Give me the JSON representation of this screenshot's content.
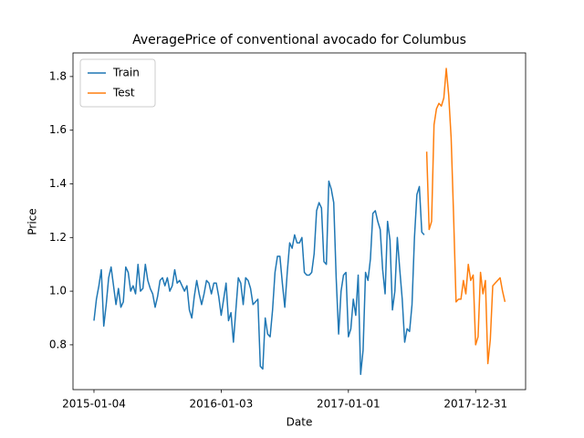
{
  "chart_data": {
    "type": "line",
    "title": "AveragePrice of conventional avocado for Columbus",
    "x_label": "Date",
    "y_label": "Price",
    "x": [
      "2015-01-04",
      "2015-01-11",
      "2015-01-18",
      "2015-01-25",
      "2015-02-01",
      "2015-02-08",
      "2015-02-15",
      "2015-02-22",
      "2015-03-01",
      "2015-03-08",
      "2015-03-15",
      "2015-03-22",
      "2015-03-29",
      "2015-04-05",
      "2015-04-12",
      "2015-04-19",
      "2015-04-26",
      "2015-05-03",
      "2015-05-10",
      "2015-05-17",
      "2015-05-24",
      "2015-05-31",
      "2015-06-07",
      "2015-06-14",
      "2015-06-21",
      "2015-06-28",
      "2015-07-05",
      "2015-07-12",
      "2015-07-19",
      "2015-07-26",
      "2015-08-02",
      "2015-08-09",
      "2015-08-16",
      "2015-08-23",
      "2015-08-30",
      "2015-09-06",
      "2015-09-13",
      "2015-09-20",
      "2015-09-27",
      "2015-10-04",
      "2015-10-11",
      "2015-10-18",
      "2015-10-25",
      "2015-11-01",
      "2015-11-08",
      "2015-11-15",
      "2015-11-22",
      "2015-11-29",
      "2015-12-06",
      "2015-12-13",
      "2015-12-20",
      "2015-12-27",
      "2016-01-03",
      "2016-01-10",
      "2016-01-17",
      "2016-01-24",
      "2016-01-31",
      "2016-02-07",
      "2016-02-14",
      "2016-02-21",
      "2016-02-28",
      "2016-03-06",
      "2016-03-13",
      "2016-03-20",
      "2016-03-27",
      "2016-04-03",
      "2016-04-10",
      "2016-04-17",
      "2016-04-24",
      "2016-05-01",
      "2016-05-08",
      "2016-05-15",
      "2016-05-22",
      "2016-05-29",
      "2016-06-05",
      "2016-06-12",
      "2016-06-19",
      "2016-06-26",
      "2016-07-03",
      "2016-07-10",
      "2016-07-17",
      "2016-07-24",
      "2016-07-31",
      "2016-08-07",
      "2016-08-14",
      "2016-08-21",
      "2016-08-28",
      "2016-09-04",
      "2016-09-11",
      "2016-09-18",
      "2016-09-25",
      "2016-10-02",
      "2016-10-09",
      "2016-10-16",
      "2016-10-23",
      "2016-10-30",
      "2016-11-06",
      "2016-11-13",
      "2016-11-20",
      "2016-11-27",
      "2016-12-04",
      "2016-12-11",
      "2016-12-18",
      "2016-12-25",
      "2017-01-01",
      "2017-01-08",
      "2017-01-15",
      "2017-01-22",
      "2017-01-29",
      "2017-02-05",
      "2017-02-12",
      "2017-02-19",
      "2017-02-26",
      "2017-03-05",
      "2017-03-12",
      "2017-03-19",
      "2017-03-26",
      "2017-04-02",
      "2017-04-09",
      "2017-04-16",
      "2017-04-23",
      "2017-04-30",
      "2017-05-07",
      "2017-05-14",
      "2017-05-21",
      "2017-05-28",
      "2017-06-04",
      "2017-06-11",
      "2017-06-18",
      "2017-06-25",
      "2017-07-02",
      "2017-07-09",
      "2017-07-16",
      "2017-07-23",
      "2017-07-30",
      "2017-08-06",
      "2017-08-13",
      "2017-08-20",
      "2017-08-27",
      "2017-09-03",
      "2017-09-10",
      "2017-09-17",
      "2017-09-24",
      "2017-10-01",
      "2017-10-08",
      "2017-10-15",
      "2017-10-22",
      "2017-10-29",
      "2017-11-05",
      "2017-11-12",
      "2017-11-19",
      "2017-11-26",
      "2017-12-03",
      "2017-12-10",
      "2017-12-17",
      "2017-12-24",
      "2017-12-31",
      "2018-01-07",
      "2018-01-14",
      "2018-01-21",
      "2018-01-28",
      "2018-02-04",
      "2018-02-11",
      "2018-02-18",
      "2018-02-25",
      "2018-03-04",
      "2018-03-11",
      "2018-03-18",
      "2018-03-25"
    ],
    "series": [
      {
        "name": "Train",
        "color": "#1f77b4",
        "values": [
          0.89,
          0.97,
          1.02,
          1.08,
          0.87,
          0.95,
          1.05,
          1.09,
          1.02,
          0.95,
          1.01,
          0.94,
          0.96,
          1.09,
          1.07,
          1.0,
          1.02,
          0.99,
          1.1,
          1.0,
          1.01,
          1.1,
          1.04,
          1.01,
          0.99,
          0.94,
          0.98,
          1.04,
          1.05,
          1.02,
          1.05,
          1.0,
          1.02,
          1.08,
          1.03,
          1.04,
          1.02,
          1.0,
          1.02,
          0.93,
          0.9,
          0.98,
          1.04,
          0.99,
          0.95,
          0.99,
          1.04,
          1.03,
          0.99,
          1.03,
          1.03,
          0.98,
          0.91,
          0.97,
          1.03,
          0.89,
          0.92,
          0.81,
          0.93,
          1.05,
          1.03,
          0.95,
          1.05,
          1.04,
          1.01,
          0.95,
          0.96,
          0.97,
          0.72,
          0.71,
          0.9,
          0.84,
          0.83,
          0.93,
          1.07,
          1.13,
          1.13,
          1.03,
          0.94,
          1.07,
          1.18,
          1.16,
          1.21,
          1.18,
          1.18,
          1.2,
          1.07,
          1.06,
          1.06,
          1.07,
          1.14,
          1.3,
          1.33,
          1.31,
          1.11,
          1.1,
          1.41,
          1.38,
          1.33,
          1.05,
          0.84,
          1.0,
          1.06,
          1.07,
          0.83,
          0.86,
          0.97,
          0.91,
          1.06,
          0.69,
          0.78,
          1.07,
          1.04,
          1.12,
          1.29,
          1.3,
          1.26,
          1.23,
          1.08,
          0.99,
          1.26,
          1.19,
          0.93,
          1.0,
          1.2,
          1.08,
          0.97,
          0.81,
          0.86,
          0.85,
          0.95,
          1.2,
          1.36,
          1.39,
          1.22,
          1.21,
          null,
          null,
          null,
          null,
          null,
          null,
          null,
          null,
          null,
          null,
          null,
          null,
          null,
          null,
          null,
          null,
          null,
          null,
          null,
          null,
          null,
          null,
          null,
          null,
          null,
          null,
          null,
          null,
          null,
          null,
          null,
          null,
          null
        ]
      },
      {
        "name": "Test",
        "color": "#ff7f0e",
        "values": [
          null,
          null,
          null,
          null,
          null,
          null,
          null,
          null,
          null,
          null,
          null,
          null,
          null,
          null,
          null,
          null,
          null,
          null,
          null,
          null,
          null,
          null,
          null,
          null,
          null,
          null,
          null,
          null,
          null,
          null,
          null,
          null,
          null,
          null,
          null,
          null,
          null,
          null,
          null,
          null,
          null,
          null,
          null,
          null,
          null,
          null,
          null,
          null,
          null,
          null,
          null,
          null,
          null,
          null,
          null,
          null,
          null,
          null,
          null,
          null,
          null,
          null,
          null,
          null,
          null,
          null,
          null,
          null,
          null,
          null,
          null,
          null,
          null,
          null,
          null,
          null,
          null,
          null,
          null,
          null,
          null,
          null,
          null,
          null,
          null,
          null,
          null,
          null,
          null,
          null,
          null,
          null,
          null,
          null,
          null,
          null,
          null,
          null,
          null,
          null,
          null,
          null,
          null,
          null,
          null,
          null,
          null,
          null,
          null,
          null,
          null,
          null,
          null,
          null,
          null,
          null,
          null,
          null,
          null,
          null,
          null,
          null,
          null,
          null,
          null,
          null,
          null,
          null,
          null,
          null,
          null,
          null,
          null,
          null,
          null,
          null,
          1.52,
          1.23,
          1.26,
          1.62,
          1.68,
          1.7,
          1.69,
          1.72,
          1.83,
          1.73,
          1.57,
          1.28,
          0.96,
          0.97,
          0.97,
          1.04,
          0.99,
          1.1,
          1.04,
          1.06,
          0.8,
          0.83,
          1.07,
          0.99,
          1.04,
          0.73,
          0.82,
          1.02,
          1.03,
          1.04,
          1.05,
          1.0,
          0.96
        ]
      }
    ],
    "xlim": [
      "2014-11-05",
      "2018-05-23"
    ],
    "xticks": [
      "2015-01-04",
      "2016-01-03",
      "2017-01-01",
      "2017-12-31"
    ],
    "ylim": [
      0.633,
      1.888
    ],
    "yticks": [
      0.8,
      {
        "value": 1,
        "label": "1.0"
      },
      1.2,
      1.4,
      1.6,
      1.8
    ],
    "grid": false,
    "legend": "upper left"
  }
}
